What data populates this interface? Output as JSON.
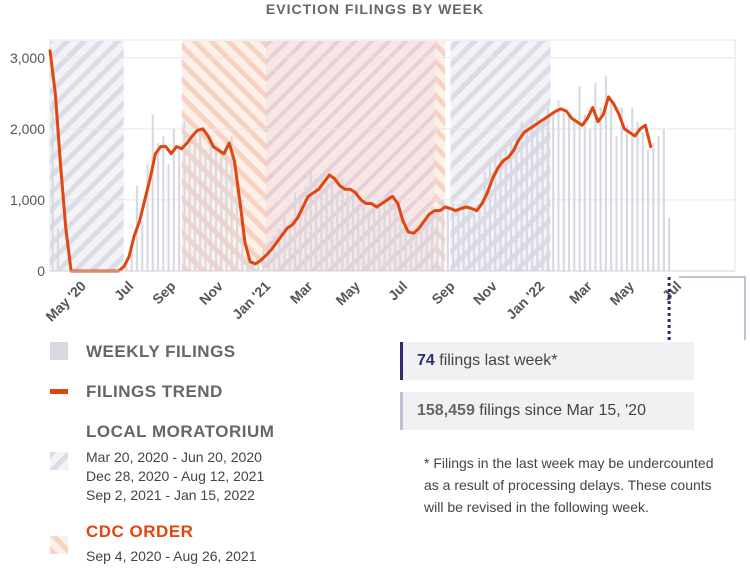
{
  "chart_data": {
    "type": "bar+line",
    "title": "EVICTION FILINGS BY WEEK",
    "ylim": [
      0,
      3250
    ],
    "yticks": [
      0,
      1000,
      2000,
      3000
    ],
    "ytick_labels": [
      "0",
      "1,000",
      "2,000",
      "3,000"
    ],
    "xrange_weeks": [
      0,
      130
    ],
    "xticks": [
      {
        "label": "May '20",
        "week": 7
      },
      {
        "label": "Jul",
        "week": 16
      },
      {
        "label": "Sep",
        "week": 24
      },
      {
        "label": "Nov",
        "week": 33
      },
      {
        "label": "Jan '21",
        "week": 42
      },
      {
        "label": "Mar",
        "week": 50
      },
      {
        "label": "May",
        "week": 59
      },
      {
        "label": "Jul",
        "week": 68
      },
      {
        "label": "Sep",
        "week": 77
      },
      {
        "label": "Nov",
        "week": 85
      },
      {
        "label": "Jan '22",
        "week": 94
      },
      {
        "label": "Mar",
        "week": 103
      },
      {
        "label": "May",
        "week": 111
      },
      {
        "label": "Jul",
        "week": 120
      }
    ],
    "series": [
      {
        "name": "Weekly filings",
        "type": "bar",
        "color": "#d8d8e3",
        "values": [
          2400,
          600,
          0,
          0,
          0,
          0,
          0,
          0,
          0,
          0,
          0,
          0,
          0,
          0,
          120,
          300,
          1200,
          700,
          1500,
          2200,
          1800,
          1900,
          1500,
          2000,
          1700,
          2100,
          1800,
          1900,
          2000,
          1700,
          1900,
          1800,
          1600,
          1700,
          1900,
          1400,
          1000,
          200,
          150,
          100,
          300,
          400,
          500,
          600,
          800,
          700,
          1100,
          1000,
          1200,
          1400,
          1300,
          1350,
          1200,
          1250,
          1100,
          1300,
          1150,
          1050,
          900,
          950,
          850,
          900,
          1000,
          950,
          1100,
          900,
          800,
          600,
          500,
          550,
          700,
          800,
          900,
          850,
          1000,
          900,
          950,
          950,
          1000,
          850,
          800,
          900,
          1400,
          1600,
          1650,
          1700,
          1750,
          1800,
          1900,
          2100,
          2000,
          2150,
          2200,
          2100,
          2300,
          2200,
          2400,
          2250,
          2200,
          2100,
          2600,
          2200,
          2000,
          2650,
          2300,
          2750,
          2400,
          1900,
          2300,
          2050,
          2300,
          2100,
          1950,
          1700,
          1800,
          1900,
          2000,
          750
        ],
        "start_week": 0
      },
      {
        "name": "Filings trend",
        "type": "line",
        "color": "#e0460f",
        "points": [
          [
            0,
            3100
          ],
          [
            1,
            2500
          ],
          [
            2,
            1500
          ],
          [
            3,
            600
          ],
          [
            4,
            0
          ],
          [
            13,
            0
          ],
          [
            14,
            60
          ],
          [
            15,
            200
          ],
          [
            16,
            500
          ],
          [
            17,
            700
          ],
          [
            18,
            1000
          ],
          [
            19,
            1300
          ],
          [
            20,
            1650
          ],
          [
            21,
            1750
          ],
          [
            22,
            1750
          ],
          [
            23,
            1650
          ],
          [
            24,
            1750
          ],
          [
            25,
            1720
          ],
          [
            26,
            1800
          ],
          [
            27,
            1900
          ],
          [
            28,
            1980
          ],
          [
            29,
            2000
          ],
          [
            30,
            1900
          ],
          [
            31,
            1750
          ],
          [
            32,
            1700
          ],
          [
            33,
            1650
          ],
          [
            34,
            1800
          ],
          [
            35,
            1550
          ],
          [
            36,
            1000
          ],
          [
            37,
            400
          ],
          [
            38,
            130
          ],
          [
            39,
            100
          ],
          [
            40,
            150
          ],
          [
            41,
            220
          ],
          [
            42,
            300
          ],
          [
            43,
            400
          ],
          [
            44,
            500
          ],
          [
            45,
            600
          ],
          [
            46,
            650
          ],
          [
            47,
            750
          ],
          [
            48,
            900
          ],
          [
            49,
            1050
          ],
          [
            50,
            1100
          ],
          [
            51,
            1150
          ],
          [
            52,
            1250
          ],
          [
            53,
            1350
          ],
          [
            54,
            1300
          ],
          [
            55,
            1200
          ],
          [
            56,
            1150
          ],
          [
            57,
            1150
          ],
          [
            58,
            1100
          ],
          [
            59,
            1000
          ],
          [
            60,
            950
          ],
          [
            61,
            950
          ],
          [
            62,
            900
          ],
          [
            63,
            950
          ],
          [
            64,
            1000
          ],
          [
            65,
            1050
          ],
          [
            66,
            950
          ],
          [
            67,
            700
          ],
          [
            68,
            550
          ],
          [
            69,
            530
          ],
          [
            70,
            600
          ],
          [
            71,
            700
          ],
          [
            72,
            800
          ],
          [
            73,
            850
          ],
          [
            74,
            850
          ],
          [
            75,
            900
          ],
          [
            76,
            880
          ],
          [
            77,
            850
          ],
          [
            78,
            880
          ],
          [
            79,
            900
          ],
          [
            80,
            880
          ],
          [
            81,
            850
          ],
          [
            82,
            950
          ],
          [
            83,
            1100
          ],
          [
            84,
            1300
          ],
          [
            85,
            1450
          ],
          [
            86,
            1550
          ],
          [
            87,
            1600
          ],
          [
            88,
            1700
          ],
          [
            89,
            1850
          ],
          [
            90,
            1950
          ],
          [
            91,
            2000
          ],
          [
            92,
            2050
          ],
          [
            93,
            2100
          ],
          [
            94,
            2150
          ],
          [
            95,
            2200
          ],
          [
            96,
            2250
          ],
          [
            97,
            2280
          ],
          [
            98,
            2250
          ],
          [
            99,
            2150
          ],
          [
            100,
            2100
          ],
          [
            101,
            2050
          ],
          [
            102,
            2150
          ],
          [
            103,
            2300
          ],
          [
            104,
            2100
          ],
          [
            105,
            2200
          ],
          [
            106,
            2450
          ],
          [
            107,
            2350
          ],
          [
            108,
            2200
          ],
          [
            109,
            2000
          ],
          [
            110,
            1950
          ],
          [
            111,
            1900
          ],
          [
            112,
            2000
          ],
          [
            113,
            2050
          ],
          [
            114,
            1750
          ]
        ]
      }
    ],
    "shaded_periods": [
      {
        "name": "Local moratorium",
        "start_week": 0,
        "end_week": 14
      },
      {
        "name": "CDC order",
        "start_week": 25,
        "end_week": 75
      },
      {
        "name": "Local moratorium",
        "start_week": 41,
        "end_week": 73
      },
      {
        "name": "Local moratorium",
        "start_week": 76,
        "end_week": 95
      }
    ],
    "colors": {
      "bars": "#d8d8e3",
      "trend": "#e0460f",
      "moratorium": "#c9cad8",
      "cdc": "#f3c3ab",
      "dotted": "#2d2d6b",
      "box_edge": "#bfc0d4"
    }
  },
  "legend": {
    "weekly": "WEEKLY FILINGS",
    "trend": "FILINGS TREND",
    "moratorium": "LOCAL MORATORIUM",
    "moratorium_dates": [
      "Mar 20, 2020 - Jun 20, 2020",
      "Dec 28, 2020 - Aug 12, 2021",
      "Sep 2, 2021 - Jan 15, 2022"
    ],
    "cdc": "CDC ORDER",
    "cdc_dates": [
      "Sep 4, 2020 - Aug 26, 2021"
    ]
  },
  "stats": {
    "last_week_value": "74",
    "last_week_text": " filings last week*",
    "since_value": "158,459",
    "since_text": " filings since Mar 15, '20"
  },
  "footnote": "* Filings in the last week may be undercounted as a result of processing delays. These counts will be revised in the following week."
}
